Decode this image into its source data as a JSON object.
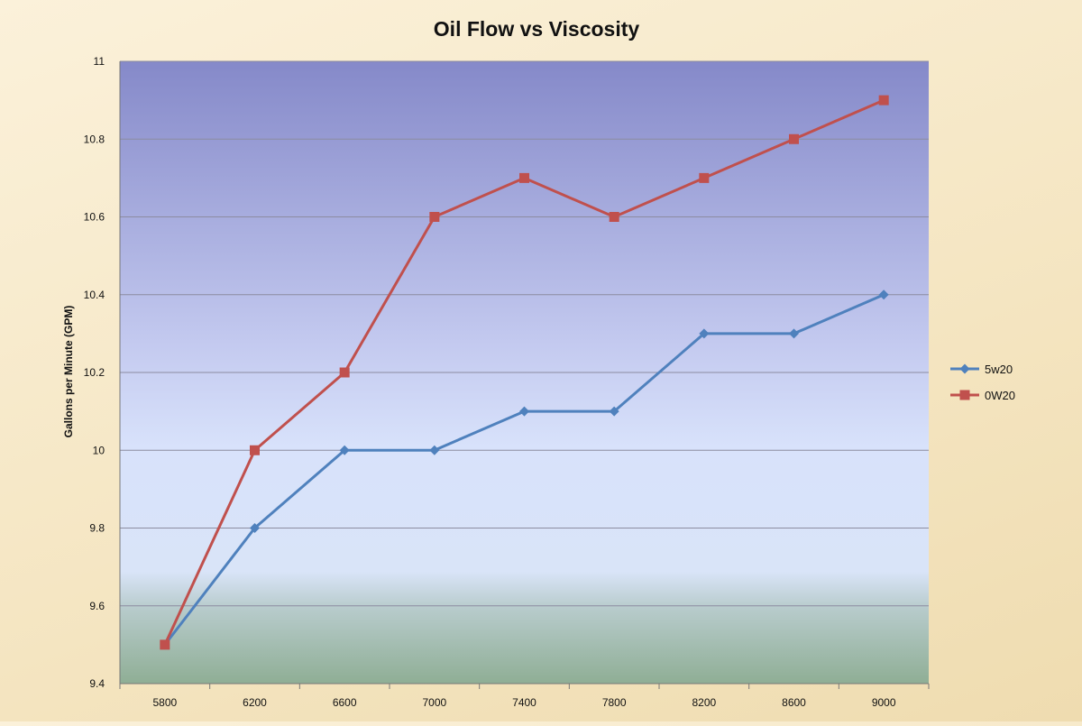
{
  "chart_data": {
    "type": "line",
    "title": "Oil Flow vs Viscosity",
    "xlabel": "",
    "ylabel": "Gallons per Minute (GPM)",
    "x": [
      5800,
      6200,
      6600,
      7000,
      7400,
      7800,
      8200,
      8600,
      9000
    ],
    "ylim": [
      9.4,
      11
    ],
    "yticks": [
      9.4,
      9.6,
      9.8,
      10,
      10.2,
      10.4,
      10.6,
      10.8,
      11
    ],
    "grid": true,
    "legend": "right",
    "series": [
      {
        "name": "5w20",
        "color": "#4f81bd",
        "marker": "diamond",
        "values": [
          9.5,
          9.8,
          10.0,
          10.0,
          10.1,
          10.1,
          10.3,
          10.3,
          10.4
        ]
      },
      {
        "name": "0W20",
        "color": "#c0504d",
        "marker": "square",
        "values": [
          9.5,
          10.0,
          10.2,
          10.6,
          10.7,
          10.6,
          10.7,
          10.8,
          10.9
        ]
      }
    ]
  }
}
